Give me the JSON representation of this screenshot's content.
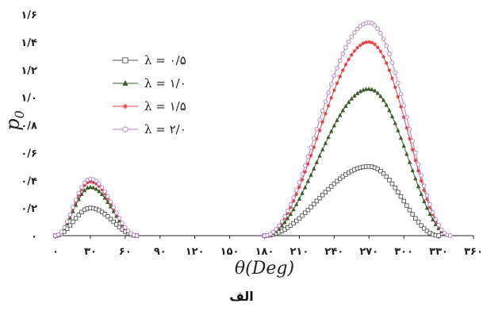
{
  "caption": "الف",
  "chart_data": {
    "type": "line",
    "xlabel": "θ(Deg)",
    "ylabel": "p",
    "ylabel_sub": "0",
    "xlim": [
      0,
      360
    ],
    "ylim": [
      0,
      1.6
    ],
    "x_ticks": [
      0,
      30,
      60,
      90,
      120,
      150,
      180,
      210,
      240,
      270,
      300,
      330,
      360
    ],
    "x_tick_labels": [
      "۰",
      "۳۰",
      "۶۰",
      "۹۰",
      "۱۲۰",
      "۱۵۰",
      "۱۸۰",
      "۲۱۰",
      "۲۴۰",
      "۲۷۰",
      "۳۰۰",
      "۳۳۰",
      "۳۶۰"
    ],
    "y_ticks": [
      0,
      0.2,
      0.4,
      0.6,
      0.8,
      1.0,
      1.2,
      1.4,
      1.6
    ],
    "y_tick_labels": [
      "۰",
      "۰/۲",
      "۰/۴",
      "۰/۶",
      "۰/۸",
      "۱/۰",
      "۱/۲",
      "۱/۴",
      "۱/۶"
    ],
    "legend_position": "top-left",
    "grid": false,
    "series": [
      {
        "name": "λ = ۰/۵",
        "color": "#555555",
        "marker": "square-open",
        "peak1": {
          "x_start": 0,
          "x_peak": 30,
          "x_end": 70,
          "y_max": 0.2
        },
        "peak2": {
          "x_start": 180,
          "x_peak": 270,
          "x_end": 330,
          "y_max": 0.5
        }
      },
      {
        "name": "λ = ۱/۰",
        "color": "#3c5a2a",
        "marker": "triangle-filled",
        "peak1": {
          "x_start": 0,
          "x_peak": 30,
          "x_end": 70,
          "y_max": 0.35
        },
        "peak2": {
          "x_start": 180,
          "x_peak": 270,
          "x_end": 340,
          "y_max": 1.06
        }
      },
      {
        "name": "λ = ۱/۵",
        "color": "#e04040",
        "marker": "star",
        "peak1": {
          "x_start": 0,
          "x_peak": 30,
          "x_end": 70,
          "y_max": 0.39
        },
        "peak2": {
          "x_start": 180,
          "x_peak": 270,
          "x_end": 340,
          "y_max": 1.4
        }
      },
      {
        "name": "λ = ۲/۰",
        "color": "#b37fc0",
        "marker": "circle-open",
        "peak1": {
          "x_start": 0,
          "x_peak": 30,
          "x_end": 70,
          "y_max": 0.41
        },
        "peak2": {
          "x_start": 180,
          "x_peak": 270,
          "x_end": 340,
          "y_max": 1.54
        }
      }
    ]
  }
}
